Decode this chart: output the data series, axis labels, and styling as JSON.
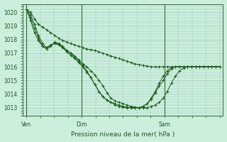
{
  "background_color": "#cceedd",
  "grid_color": "#99ccbb",
  "line_color": "#1a5c1a",
  "marker_color": "#1a5c1a",
  "ylabel_ticks": [
    1013,
    1014,
    1015,
    1016,
    1017,
    1018,
    1019,
    1020
  ],
  "xtick_labels": [
    "Ven",
    "Dim",
    "Sam"
  ],
  "xtick_positions": [
    0,
    16,
    40
  ],
  "xlabel": "Pression niveau de la mer( hPa )",
  "xlim": [
    -1,
    57
  ],
  "ylim": [
    1012.4,
    1020.6
  ],
  "series": [
    [
      1020.2,
      1020.0,
      1019.5,
      1019.1,
      1018.9,
      1018.7,
      1018.5,
      1018.3,
      1018.1,
      1017.95,
      1017.8,
      1017.7,
      1017.6,
      1017.5,
      1017.4,
      1017.3,
      1017.25,
      1017.2,
      1017.1,
      1017.0,
      1016.9,
      1016.8,
      1016.7,
      1016.6,
      1016.5,
      1016.4,
      1016.3,
      1016.2,
      1016.15,
      1016.1,
      1016.05,
      1016.0,
      1016.0,
      1016.0,
      1016.0,
      1016.0,
      1016.0,
      1016.0,
      1016.0,
      1016.0,
      1016.0,
      1016.0,
      1016.0,
      1016.0,
      1016.0,
      1016.0,
      1016.0,
      1016.0,
      1016.0
    ],
    [
      1020.2,
      1019.8,
      1019.1,
      1018.3,
      1017.7,
      1017.4,
      1017.6,
      1017.7,
      1017.6,
      1017.4,
      1017.2,
      1017.0,
      1016.8,
      1016.5,
      1016.2,
      1016.0,
      1015.7,
      1015.4,
      1015.0,
      1014.6,
      1014.1,
      1013.7,
      1013.5,
      1013.4,
      1013.3,
      1013.2,
      1013.1,
      1013.05,
      1013.0,
      1013.0,
      1013.0,
      1013.1,
      1013.2,
      1013.4,
      1013.7,
      1014.2,
      1014.8,
      1015.3,
      1015.7,
      1015.9,
      1016.0,
      1016.0,
      1016.0,
      1016.0,
      1016.0,
      1016.0,
      1016.0,
      1016.0,
      1016.0
    ],
    [
      1020.2,
      1019.6,
      1018.8,
      1018.1,
      1017.5,
      1017.3,
      1017.5,
      1017.75,
      1017.65,
      1017.4,
      1017.1,
      1016.85,
      1016.6,
      1016.3,
      1016.0,
      1015.6,
      1015.2,
      1014.7,
      1014.2,
      1013.8,
      1013.55,
      1013.4,
      1013.3,
      1013.2,
      1013.1,
      1013.05,
      1013.0,
      1013.0,
      1013.0,
      1013.1,
      1013.3,
      1013.6,
      1014.1,
      1014.6,
      1015.0,
      1015.5,
      1015.85,
      1016.0,
      1016.0,
      1016.0,
      1016.0,
      1016.0,
      1016.0,
      1016.0,
      1016.0,
      1016.0,
      1016.0,
      1016.0,
      1016.0
    ],
    [
      1020.2,
      1019.4,
      1018.5,
      1017.9,
      1017.5,
      1017.4,
      1017.5,
      1017.8,
      1017.7,
      1017.5,
      1017.2,
      1017.0,
      1016.7,
      1016.4,
      1016.1,
      1015.7,
      1015.2,
      1014.7,
      1014.2,
      1013.8,
      1013.55,
      1013.4,
      1013.2,
      1013.1,
      1013.05,
      1013.0,
      1013.0,
      1013.0,
      1013.0,
      1013.1,
      1013.3,
      1013.7,
      1014.2,
      1014.8,
      1015.3,
      1015.7,
      1015.95,
      1016.0,
      1016.0,
      1016.0,
      1016.0,
      1016.0,
      1016.0,
      1016.0,
      1016.0,
      1016.0,
      1016.0,
      1016.0,
      1016.0
    ]
  ],
  "n_points": 49,
  "tick_fontsize": 5.5,
  "xlabel_fontsize": 6.5
}
